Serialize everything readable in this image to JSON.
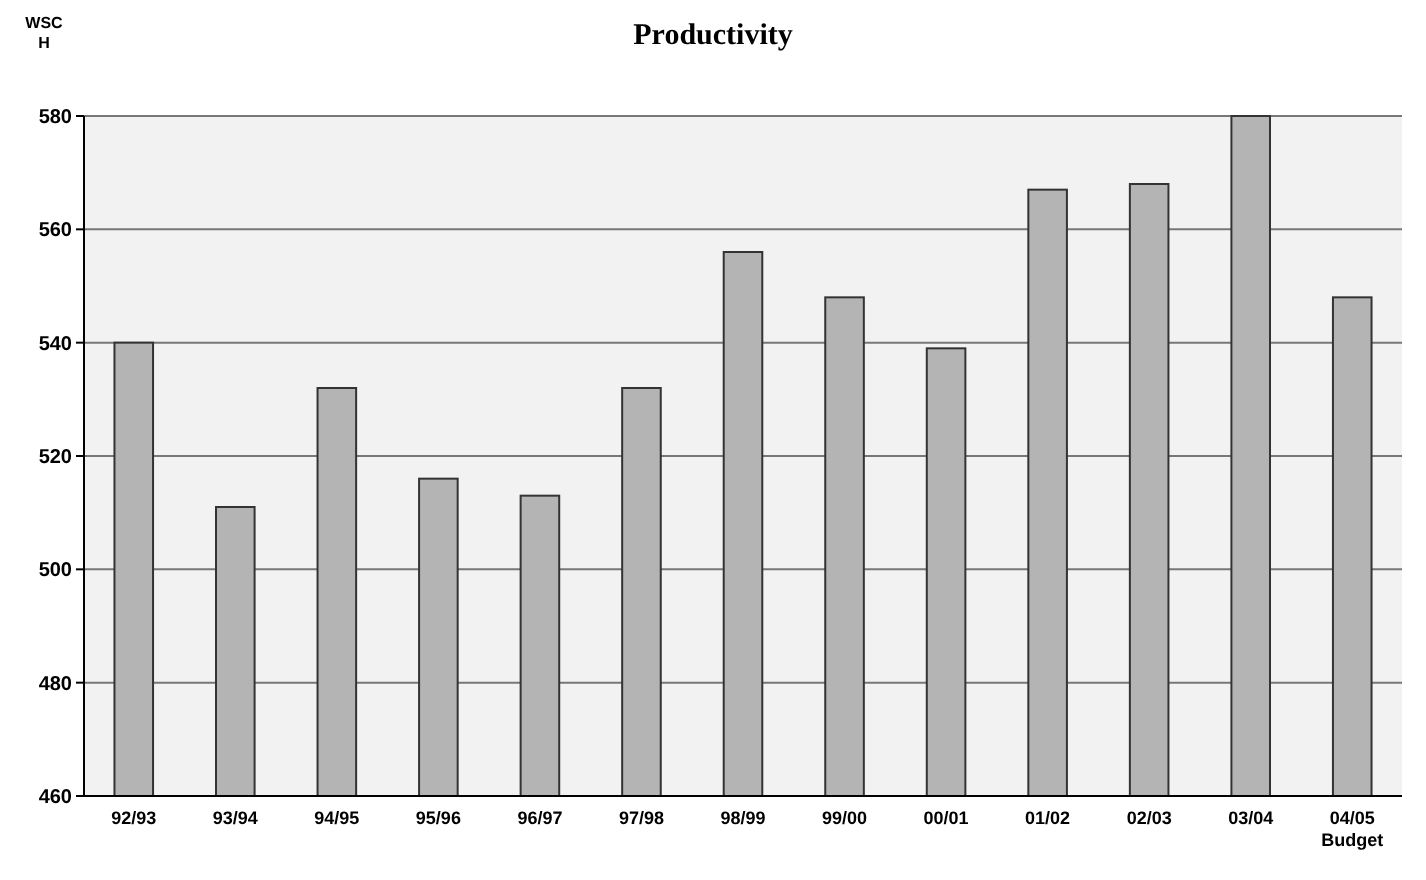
{
  "chart_data": {
    "type": "bar",
    "title": "Productivity",
    "ylabel": "WSC H",
    "categories": [
      "92/93",
      "93/94",
      "94/95",
      "95/96",
      "96/97",
      "97/98",
      "98/99",
      "99/00",
      "00/01",
      "01/02",
      "02/03",
      "03/04",
      "04/05 Budget"
    ],
    "values": [
      540,
      511,
      532,
      516,
      513,
      532,
      556,
      548,
      539,
      567,
      568,
      580,
      548
    ],
    "color": "#b4b4b4",
    "ylim": [
      460,
      580
    ],
    "yticks": [
      460,
      480,
      500,
      520,
      540,
      560,
      580
    ],
    "grid": "y"
  }
}
